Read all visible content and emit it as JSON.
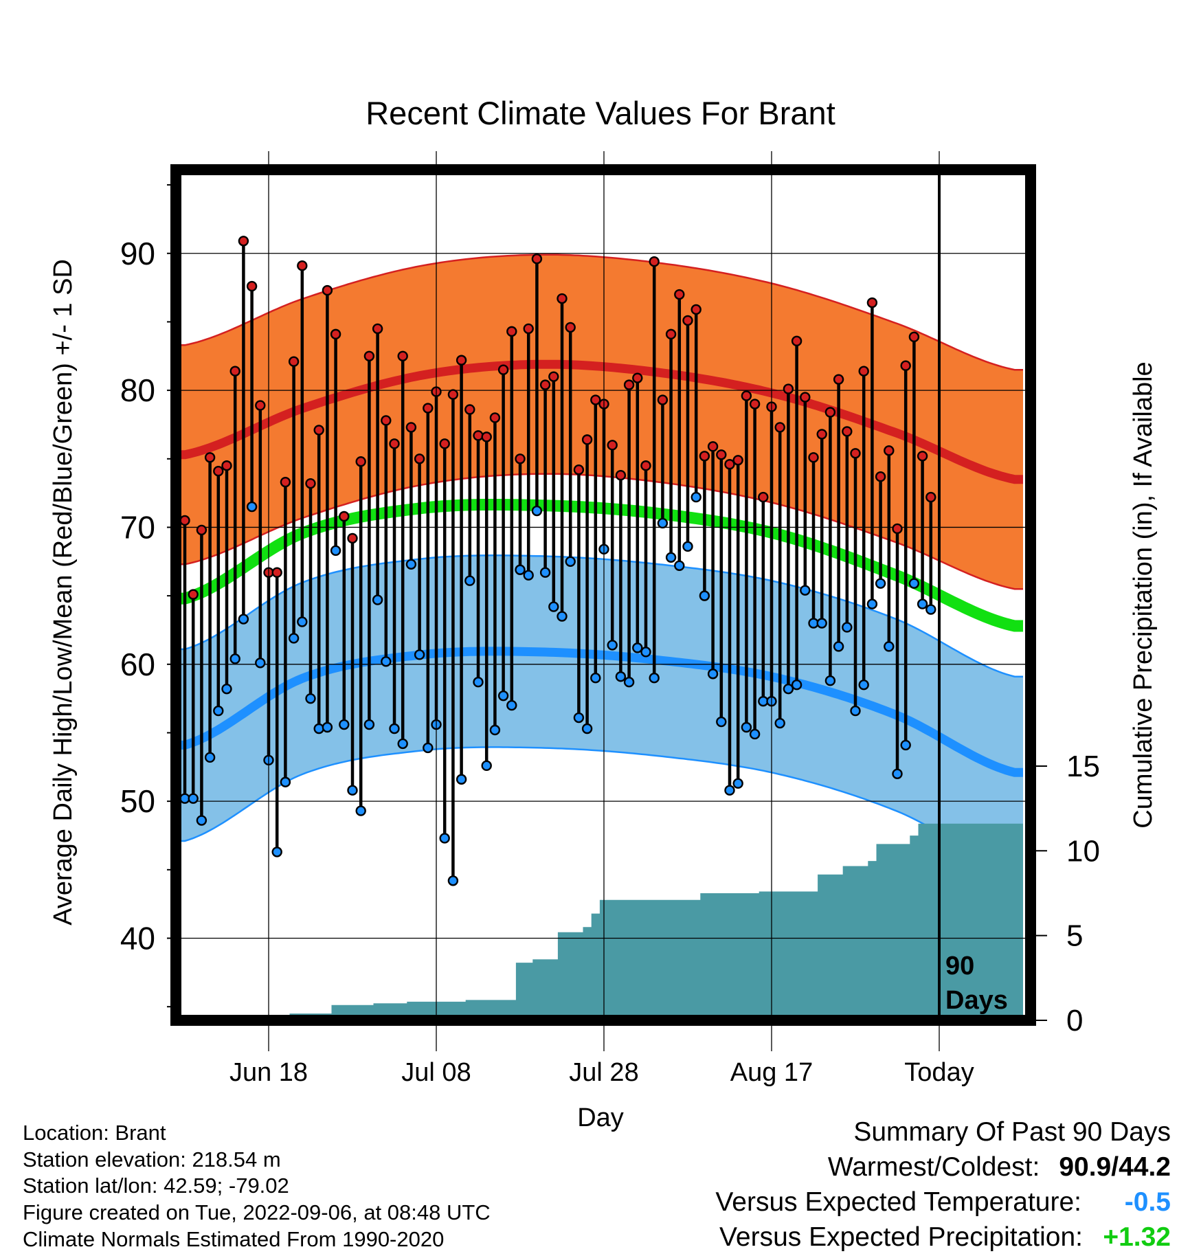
{
  "title": "Recent Climate Values For Brant",
  "chart_data": {
    "type": "line",
    "title": "Recent Climate Values For Brant",
    "xlabel": "Day",
    "ylabel_left": "Average Daily High/Low/Mean (Red/Blue/Green) +/- 1 SD",
    "ylabel_right": "Cumulative Precipitation (in), If Available",
    "ylim_left": [
      34.5,
      96
    ],
    "yticks_left": [
      40,
      50,
      60,
      70,
      80,
      90
    ],
    "ylim_right": [
      0,
      15
    ],
    "yticks_right": [
      0,
      5,
      10,
      15
    ],
    "x_start": "Jun 08",
    "x_days": 99,
    "x_tick_labels": [
      "Jun 18",
      "Jul 08",
      "Jul 28",
      "Aug 17",
      "Today"
    ],
    "x_tick_day_index": [
      10,
      30,
      50,
      70,
      90
    ],
    "today_day_index": 90,
    "today_annotation": [
      "90",
      "Days"
    ],
    "grid": true,
    "series": [
      {
        "name": "Normal High",
        "color": "#d42020",
        "sd_band_color": "#f47a30",
        "mean": [
          75.3,
          78.7,
          81.1,
          81.9,
          81.3,
          79.7,
          76.9,
          73.5
        ],
        "sd": 8.0
      },
      {
        "name": "Normal Mean",
        "color": "#11e011",
        "mean": [
          64.8,
          69.6,
          71.4,
          71.6,
          71.0,
          69.5,
          66.5,
          62.8
        ]
      },
      {
        "name": "Normal Low",
        "color": "#1e90ff",
        "sd_band_color": "#84c1e8",
        "mean": [
          54.1,
          59.0,
          60.7,
          60.9,
          60.3,
          59.0,
          56.3,
          52.1
        ],
        "sd": 7.0
      },
      {
        "name": "Observed High",
        "color": "#d42020",
        "values": [
          70.5,
          65.1,
          69.8,
          75.1,
          74.1,
          74.5,
          81.4,
          90.9,
          87.6,
          78.9,
          66.7,
          66.7,
          73.3,
          82.1,
          89.1,
          73.2,
          77.1,
          87.3,
          84.1,
          70.8,
          69.2,
          74.8,
          82.5,
          84.5,
          77.8,
          76.1,
          82.5,
          77.3,
          75.0,
          78.7,
          79.9,
          76.1,
          79.7,
          82.2,
          78.6,
          76.7,
          76.6,
          78.0,
          81.5,
          84.3,
          75.0,
          84.5,
          89.6,
          80.4,
          81.0,
          86.7,
          84.6,
          74.2,
          76.4,
          79.3,
          79.0,
          76.0,
          73.8,
          80.4,
          80.9,
          74.5,
          89.4,
          79.3,
          84.1,
          87.0,
          85.1,
          85.9,
          75.2,
          75.9,
          75.3,
          74.6,
          74.9,
          79.6,
          79.0,
          72.2,
          78.8,
          77.3,
          80.1,
          83.6,
          79.5,
          75.1,
          76.8,
          78.4,
          80.8,
          77.0,
          75.4,
          81.4,
          86.4,
          73.7,
          75.6,
          69.9,
          81.8,
          83.9,
          75.2,
          72.2
        ]
      },
      {
        "name": "Observed Low",
        "color": "#1e90ff",
        "values": [
          50.2,
          50.2,
          48.6,
          53.2,
          56.6,
          58.2,
          60.4,
          63.3,
          71.5,
          60.1,
          53.0,
          46.3,
          51.4,
          61.9,
          63.1,
          57.5,
          55.3,
          55.4,
          68.3,
          55.6,
          50.8,
          49.3,
          55.6,
          64.7,
          60.2,
          55.3,
          54.2,
          67.3,
          60.7,
          53.9,
          55.6,
          47.3,
          44.2,
          51.6,
          66.1,
          58.7,
          52.6,
          55.2,
          57.7,
          57.0,
          66.9,
          66.5,
          71.2,
          66.7,
          64.2,
          63.5,
          67.5,
          56.1,
          55.3,
          59.0,
          68.4,
          61.4,
          59.1,
          58.7,
          61.2,
          60.9,
          59.0,
          70.3,
          67.8,
          67.2,
          68.6,
          72.2,
          65.0,
          59.3,
          55.8,
          50.8,
          51.3,
          55.4,
          54.9,
          57.3,
          57.3,
          55.7,
          58.2,
          58.5,
          65.4,
          63.0,
          63.0,
          58.8,
          61.3,
          62.7,
          56.6,
          58.5,
          64.4,
          65.9,
          61.3,
          52.0,
          54.1,
          65.9,
          64.4,
          64.0
        ]
      },
      {
        "name": "Cumulative Precipitation",
        "color": "#4a9aa4",
        "values": [
          0.0,
          0.0,
          0.1,
          0.1,
          0.1,
          0.15,
          0.15,
          0.15,
          0.15,
          0.15,
          0.15,
          0.15,
          0.15,
          0.4,
          0.4,
          0.4,
          0.4,
          0.4,
          0.9,
          0.9,
          0.9,
          0.9,
          0.9,
          1.0,
          1.0,
          1.0,
          1.0,
          1.1,
          1.1,
          1.1,
          1.1,
          1.1,
          1.1,
          1.1,
          1.2,
          1.2,
          1.2,
          1.2,
          1.2,
          1.2,
          3.4,
          3.4,
          3.6,
          3.6,
          3.6,
          5.2,
          5.2,
          5.2,
          5.5,
          6.3,
          7.1,
          7.1,
          7.1,
          7.1,
          7.1,
          7.1,
          7.1,
          7.1,
          7.1,
          7.1,
          7.1,
          7.1,
          7.5,
          7.5,
          7.5,
          7.5,
          7.5,
          7.5,
          7.5,
          7.6,
          7.6,
          7.6,
          7.6,
          7.6,
          7.6,
          7.6,
          8.6,
          8.6,
          8.6,
          9.1,
          9.1,
          9.1,
          9.4,
          10.4,
          10.4,
          10.4,
          10.4,
          10.9,
          11.6,
          11.6
        ]
      }
    ]
  },
  "footer_info": {
    "location": "Location: Brant",
    "elevation": "Station elevation: 218.54 m",
    "latlon": "Station lat/lon: 42.59; -79.02",
    "created": "Figure created on Tue, 2022-09-06, at 08:48 UTC",
    "normals": "Climate Normals Estimated From 1990-2020"
  },
  "summary": {
    "heading": "Summary Of Past 90 Days",
    "warmest_coldest_label": "Warmest/Coldest:",
    "warmest_coldest_value": "90.9/44.2",
    "temp_label": "Versus Expected Temperature:",
    "temp_value": "-0.5",
    "temp_color": "#1e90ff",
    "precip_label": "Versus Expected Precipitation:",
    "precip_value": "+1.32",
    "precip_color": "#11cc11"
  }
}
